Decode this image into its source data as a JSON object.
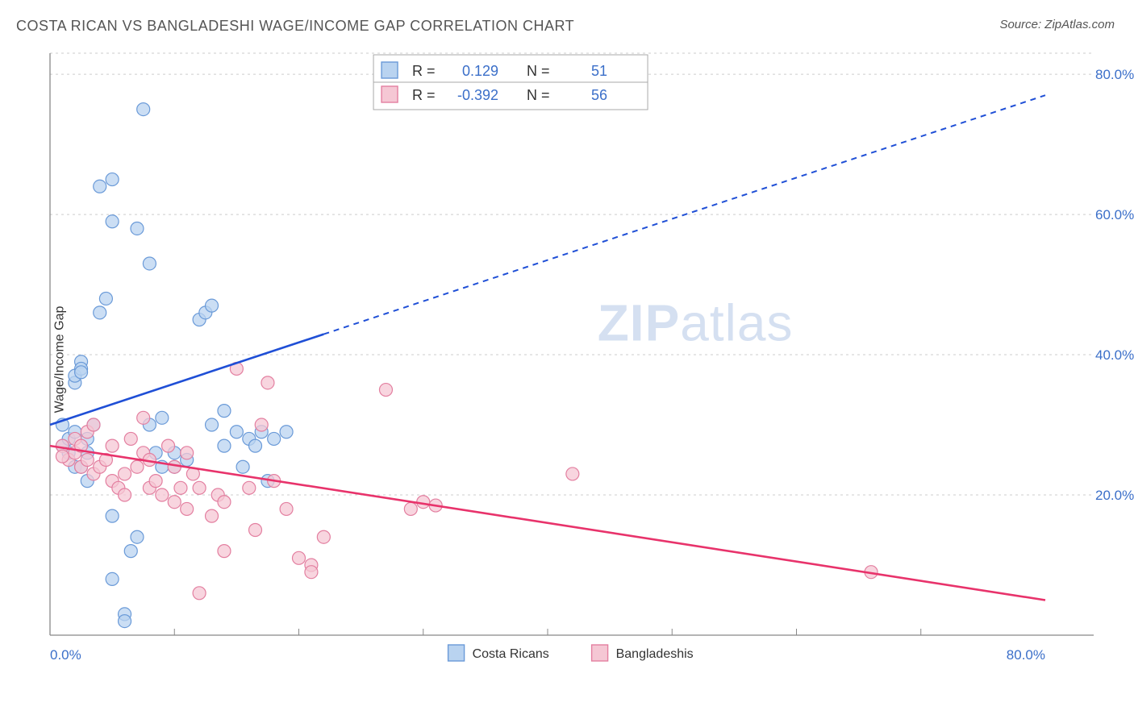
{
  "title": "COSTA RICAN VS BANGLADESHI WAGE/INCOME GAP CORRELATION CHART",
  "source_label": "Source: ZipAtlas.com",
  "ylabel": "Wage/Income Gap",
  "watermark": {
    "bold": "ZIP",
    "rest": "atlas"
  },
  "chart": {
    "type": "scatter",
    "background_color": "#ffffff",
    "plot_border_color": "#888888",
    "grid_color": "#cccccc",
    "grid_dash": "3,4",
    "xlim": [
      0,
      80
    ],
    "ylim": [
      0,
      83
    ],
    "x_ticks": [
      0,
      80
    ],
    "x_tick_labels": [
      "0.0%",
      "80.0%"
    ],
    "x_minor_ticks": [
      10,
      20,
      30,
      40,
      50,
      60,
      70
    ],
    "y_ticks": [
      20,
      40,
      60,
      80
    ],
    "y_tick_labels": [
      "20.0%",
      "40.0%",
      "60.0%",
      "80.0%"
    ],
    "tick_label_color": "#3b6fc9",
    "marker_radius": 8,
    "marker_stroke_width": 1.2,
    "series": [
      {
        "name": "Costa Ricans",
        "fill": "#b9d3f0",
        "stroke": "#6a9ad8",
        "line_color": "#1f4fd6",
        "R": "0.129",
        "N": "51",
        "trend": {
          "x1": 0,
          "y1": 30,
          "x2": 80,
          "y2": 77,
          "solid_until_x": 22
        },
        "points": [
          [
            1,
            30
          ],
          [
            1,
            27
          ],
          [
            1.5,
            26
          ],
          [
            1.5,
            28
          ],
          [
            2,
            29
          ],
          [
            2,
            36
          ],
          [
            2,
            37
          ],
          [
            2.5,
            39
          ],
          [
            2.5,
            38
          ],
          [
            2.5,
            37.5
          ],
          [
            2,
            24
          ],
          [
            2.5,
            24
          ],
          [
            3,
            28
          ],
          [
            3,
            26
          ],
          [
            3,
            22
          ],
          [
            3.5,
            30
          ],
          [
            4,
            46
          ],
          [
            4.5,
            48
          ],
          [
            4,
            64
          ],
          [
            5,
            65
          ],
          [
            5,
            59
          ],
          [
            5,
            17
          ],
          [
            6,
            3
          ],
          [
            6,
            2
          ],
          [
            6.5,
            12
          ],
          [
            7,
            14
          ],
          [
            7,
            58
          ],
          [
            7.5,
            75
          ],
          [
            8,
            53
          ],
          [
            8,
            30
          ],
          [
            8.5,
            26
          ],
          [
            9,
            24
          ],
          [
            9,
            31
          ],
          [
            10,
            24
          ],
          [
            10,
            26
          ],
          [
            11,
            25
          ],
          [
            12,
            45
          ],
          [
            12.5,
            46
          ],
          [
            13,
            47
          ],
          [
            13,
            30
          ],
          [
            14,
            27
          ],
          [
            14,
            32
          ],
          [
            15,
            29
          ],
          [
            15.5,
            24
          ],
          [
            16,
            28
          ],
          [
            16.5,
            27
          ],
          [
            17,
            29
          ],
          [
            17.5,
            22
          ],
          [
            18,
            28
          ],
          [
            19,
            29
          ],
          [
            5,
            8
          ]
        ]
      },
      {
        "name": "Bangladeshis",
        "fill": "#f5c7d4",
        "stroke": "#e37fa0",
        "line_color": "#e8336b",
        "R": "-0.392",
        "N": "56",
        "trend": {
          "x1": 0,
          "y1": 27,
          "x2": 80,
          "y2": 5,
          "solid_until_x": 80
        },
        "points": [
          [
            1,
            27
          ],
          [
            1.5,
            25
          ],
          [
            2,
            28
          ],
          [
            2,
            26
          ],
          [
            2.5,
            27
          ],
          [
            2.5,
            24
          ],
          [
            3,
            29
          ],
          [
            3,
            25
          ],
          [
            3.5,
            30
          ],
          [
            3.5,
            23
          ],
          [
            4,
            24
          ],
          [
            4.5,
            25
          ],
          [
            5,
            27
          ],
          [
            5,
            22
          ],
          [
            5.5,
            21
          ],
          [
            6,
            23
          ],
          [
            6,
            20
          ],
          [
            6.5,
            28
          ],
          [
            7,
            24
          ],
          [
            7.5,
            26
          ],
          [
            7.5,
            31
          ],
          [
            8,
            21
          ],
          [
            8,
            25
          ],
          [
            8.5,
            22
          ],
          [
            9,
            20
          ],
          [
            9.5,
            27
          ],
          [
            10,
            24
          ],
          [
            10,
            19
          ],
          [
            10.5,
            21
          ],
          [
            11,
            26
          ],
          [
            11,
            18
          ],
          [
            11.5,
            23
          ],
          [
            12,
            21
          ],
          [
            12,
            6
          ],
          [
            13,
            17
          ],
          [
            13.5,
            20
          ],
          [
            14,
            19
          ],
          [
            14,
            12
          ],
          [
            15,
            38
          ],
          [
            16,
            21
          ],
          [
            16.5,
            15
          ],
          [
            17,
            30
          ],
          [
            17.5,
            36
          ],
          [
            18,
            22
          ],
          [
            19,
            18
          ],
          [
            20,
            11
          ],
          [
            21,
            10
          ],
          [
            21,
            9
          ],
          [
            22,
            14
          ],
          [
            27,
            35
          ],
          [
            29,
            18
          ],
          [
            30,
            19
          ],
          [
            31,
            18.5
          ],
          [
            42,
            23
          ],
          [
            66,
            9
          ],
          [
            1,
            25.5
          ]
        ]
      }
    ],
    "statbox": {
      "x": 30,
      "width_pct": 24,
      "border_color": "#aaaaaa",
      "bg": "#ffffff",
      "label_color": "#333333",
      "value_color": "#3b6fc9",
      "rows": [
        {
          "swatch_series": 0,
          "R_label": "R =",
          "N_label": "N ="
        },
        {
          "swatch_series": 1,
          "R_label": "R =",
          "N_label": "N ="
        }
      ]
    },
    "bottom_legend": [
      {
        "series": 0
      },
      {
        "series": 1
      }
    ]
  }
}
